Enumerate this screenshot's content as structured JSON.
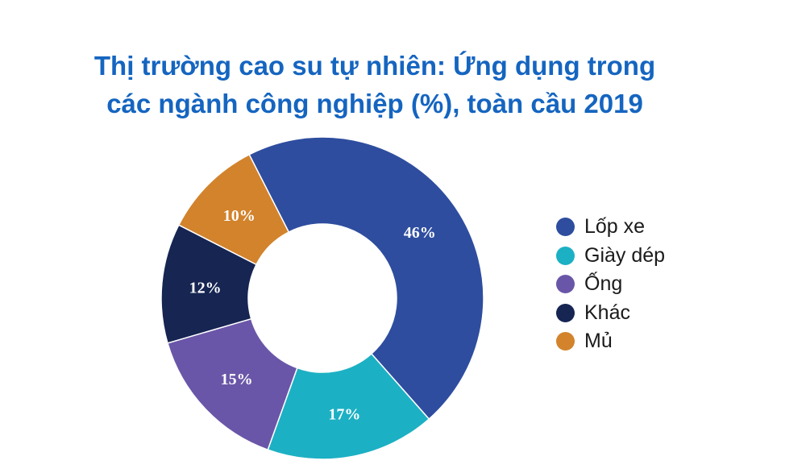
{
  "title": {
    "line1": "Thị trường cao su tự nhiên: Ứng dụng trong",
    "line2": "các ngành công nghiệp (%), toàn cầu 2019"
  },
  "chart_data": {
    "type": "pie",
    "donut": true,
    "title": "Thị trường cao su tự nhiên: Ứng dụng trong các ngành công nghiệp (%), toàn cầu 2019",
    "legend_position": "right",
    "categories": [
      "Lốp xe",
      "Giày dép",
      "Ống",
      "Khác",
      "Mủ"
    ],
    "values": [
      46,
      17,
      15,
      12,
      10
    ],
    "labels": [
      "46%",
      "17%",
      "15%",
      "12%",
      "10%"
    ],
    "colors": [
      "#2e4d9f",
      "#1cb0c4",
      "#6a56a8",
      "#162552",
      "#d2832c"
    ]
  }
}
